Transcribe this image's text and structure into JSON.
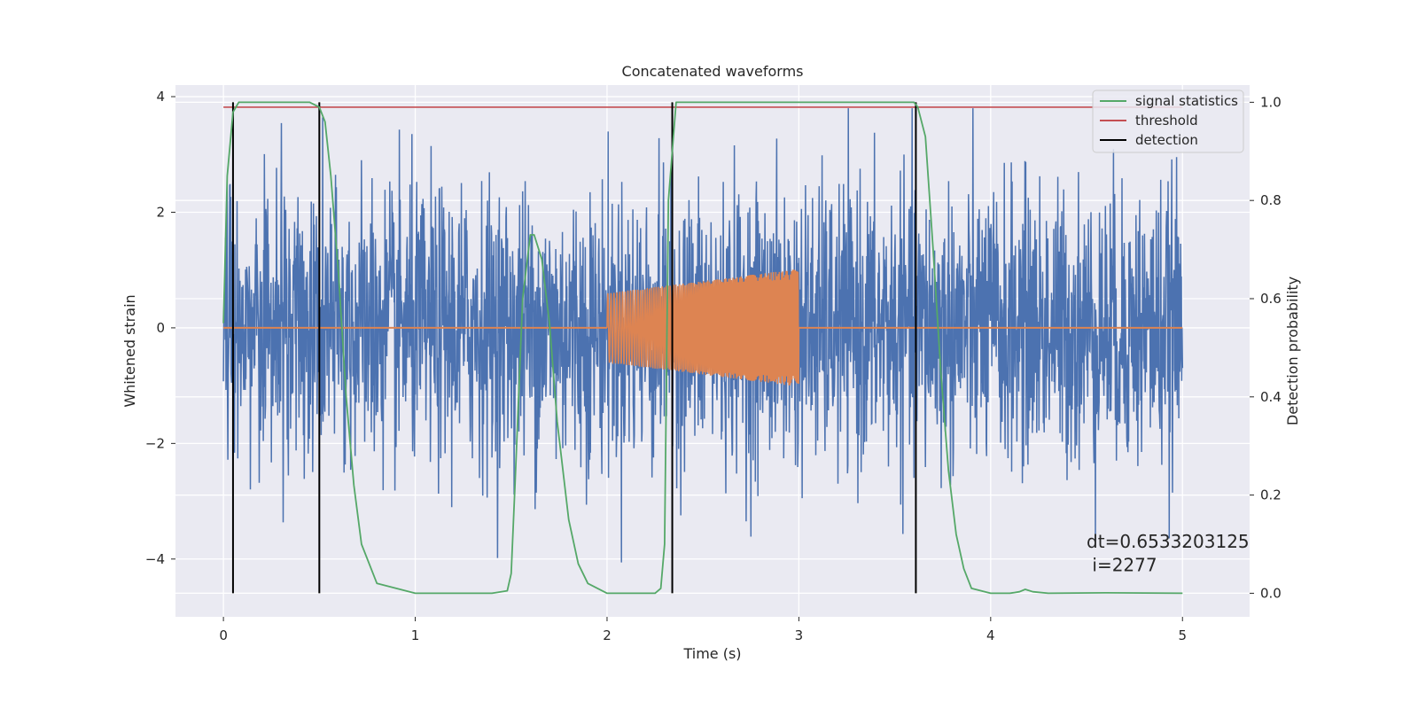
{
  "chart_data": {
    "type": "line",
    "title": "Concatenated waveforms",
    "xlabel": "Time (s)",
    "ylabel": "Whitened strain",
    "ylabel_right": "Detection probability",
    "xlim": [
      -0.25,
      5.35
    ],
    "ylim": [
      -5.0,
      4.2
    ],
    "ylim_right": [
      -0.048,
      1.035
    ],
    "x_ticks": [
      0,
      1,
      2,
      3,
      4,
      5
    ],
    "y_ticks": [
      -4,
      -2,
      0,
      2,
      4
    ],
    "y_ticks_right": [
      0.0,
      0.2,
      0.4,
      0.6,
      0.8,
      1.0
    ],
    "grid": true,
    "legend_position": "top-right",
    "colors": {
      "background": "#eaeaf2",
      "grid": "#ffffff",
      "noise": "#4c72b0",
      "injection": "#dd8452",
      "signal_statistics": "#55a868",
      "threshold": "#c44e52",
      "detection": "#000000"
    },
    "series": [
      {
        "name": "signal statistics",
        "axis": "right",
        "x": [
          0.0,
          0.02,
          0.05,
          0.08,
          0.12,
          0.2,
          0.3,
          0.45,
          0.5,
          0.53,
          0.56,
          0.6,
          0.64,
          0.68,
          0.72,
          0.8,
          1.0,
          1.4,
          1.48,
          1.5,
          1.52,
          1.56,
          1.6,
          1.62,
          1.66,
          1.7,
          1.74,
          1.8,
          1.85,
          1.9,
          2.0,
          2.25,
          2.28,
          2.3,
          2.32,
          2.36,
          2.4,
          2.5,
          3.0,
          3.5,
          3.6,
          3.62,
          3.66,
          3.7,
          3.74,
          3.78,
          3.82,
          3.86,
          3.9,
          4.0,
          4.1,
          4.15,
          4.18,
          4.22,
          4.3,
          4.6,
          5.0
        ],
        "y": [
          0.55,
          0.85,
          0.98,
          1.0,
          1.0,
          1.0,
          1.0,
          1.0,
          0.99,
          0.96,
          0.85,
          0.65,
          0.4,
          0.22,
          0.1,
          0.02,
          0.0,
          0.0,
          0.005,
          0.04,
          0.22,
          0.6,
          0.73,
          0.73,
          0.68,
          0.55,
          0.35,
          0.15,
          0.06,
          0.02,
          0.0,
          0.0,
          0.01,
          0.1,
          0.8,
          1.0,
          1.0,
          1.0,
          1.0,
          1.0,
          1.0,
          0.99,
          0.93,
          0.7,
          0.45,
          0.25,
          0.12,
          0.05,
          0.01,
          0.0,
          0.0,
          0.003,
          0.008,
          0.003,
          0.0,
          0.001,
          0.0
        ]
      },
      {
        "name": "threshold",
        "axis": "right",
        "x": [
          0.0,
          5.0
        ],
        "y": [
          0.99,
          0.99
        ]
      },
      {
        "name": "detection",
        "axis": "right",
        "x": [
          0.05,
          0.5,
          2.34,
          3.61
        ],
        "y_range": [
          0.0,
          1.0
        ]
      },
      {
        "name": "",
        "axis": "left",
        "description_type": "noise",
        "x_range": [
          0.0,
          5.0
        ],
        "typical_amplitude": 1.2,
        "peak_min": -4.6,
        "peak_max": 3.8
      },
      {
        "name": "",
        "axis": "left",
        "description_type": "injection",
        "x_range": [
          2.0,
          3.0
        ],
        "amplitude_start": 0.6,
        "amplitude_end": 1.02
      }
    ],
    "annotations": [
      {
        "text": "dt=0.6533203125",
        "x": 4.5,
        "y": -3.7
      },
      {
        "text": " i=2277",
        "x": 4.5,
        "y": -4.1
      }
    ]
  }
}
